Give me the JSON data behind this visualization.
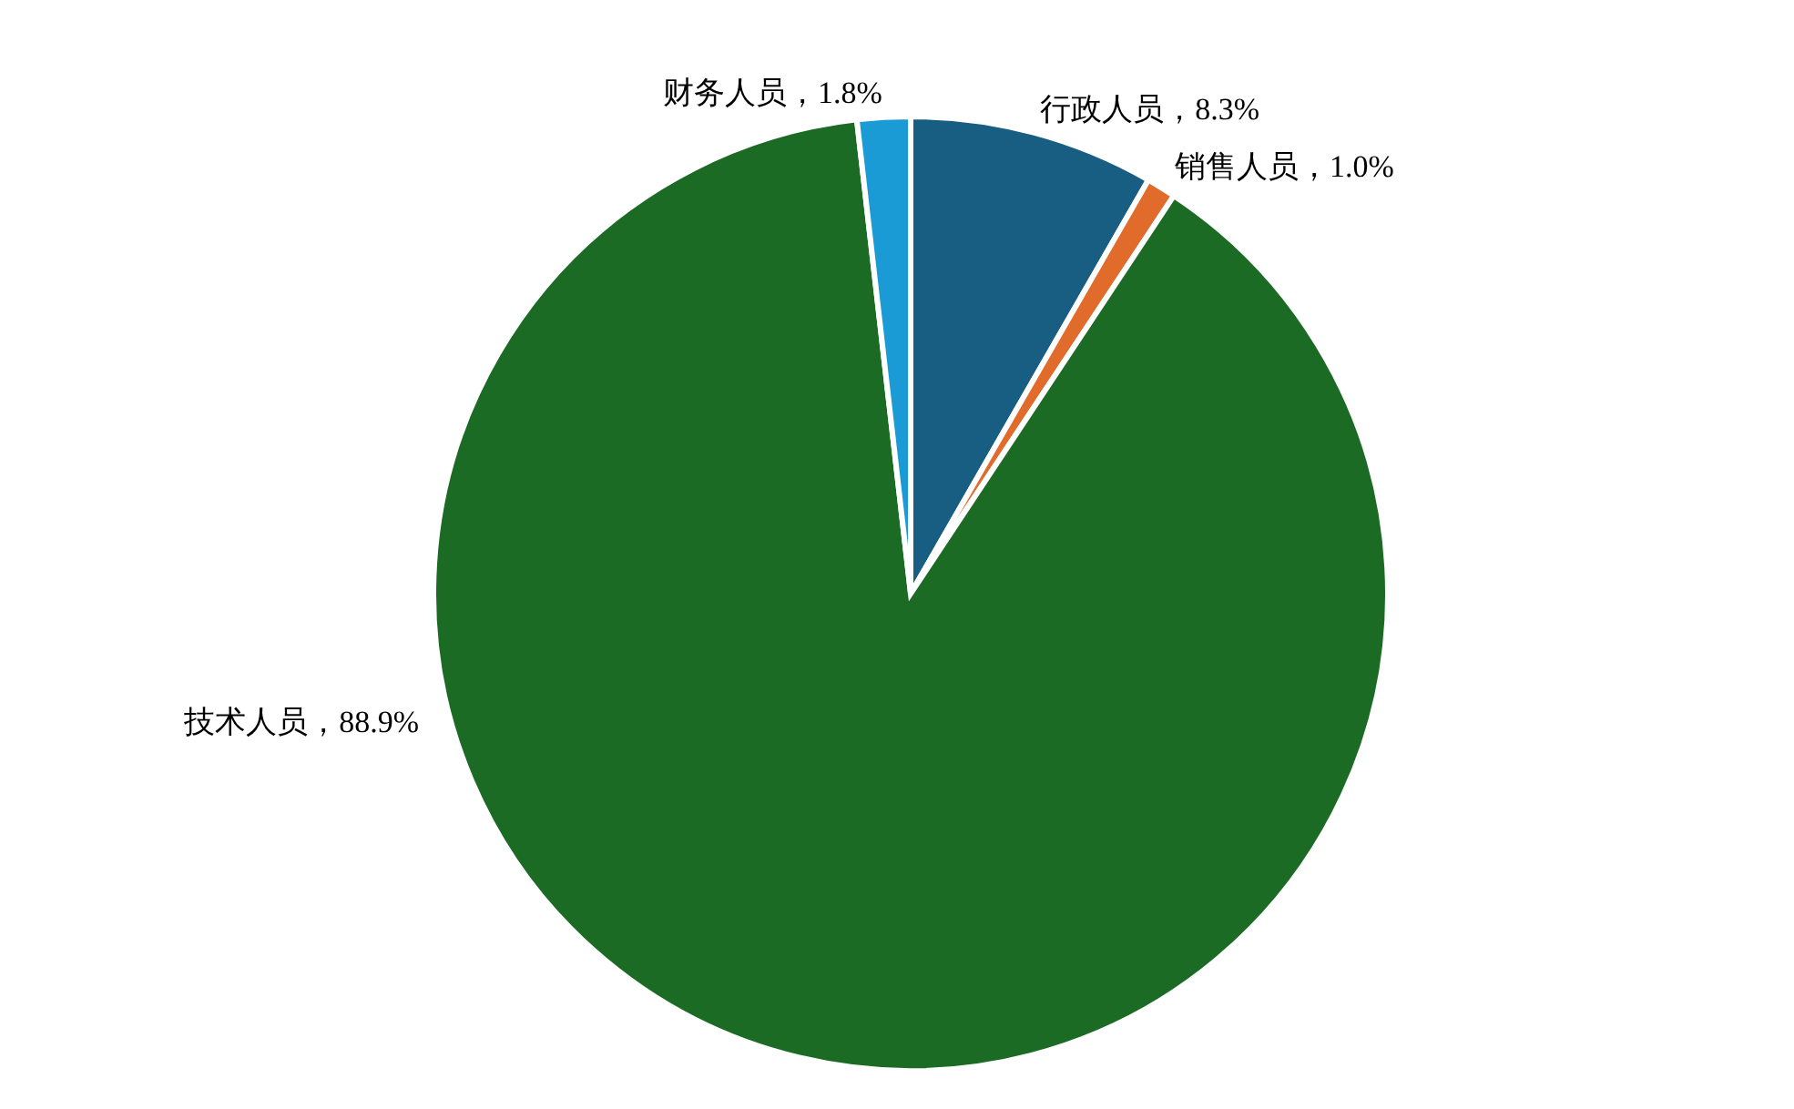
{
  "chart_data": {
    "type": "pie",
    "categories": [
      "行政人员",
      "销售人员",
      "技术人员",
      "财务人员"
    ],
    "values": [
      8.3,
      1.0,
      88.9,
      1.8
    ],
    "colors": [
      "#175e82",
      "#e06b2a",
      "#1b6b25",
      "#1a9bd6"
    ],
    "value_labels": [
      "，8.3%",
      "，1.0%",
      "，88.9%",
      "，1.8%"
    ]
  }
}
